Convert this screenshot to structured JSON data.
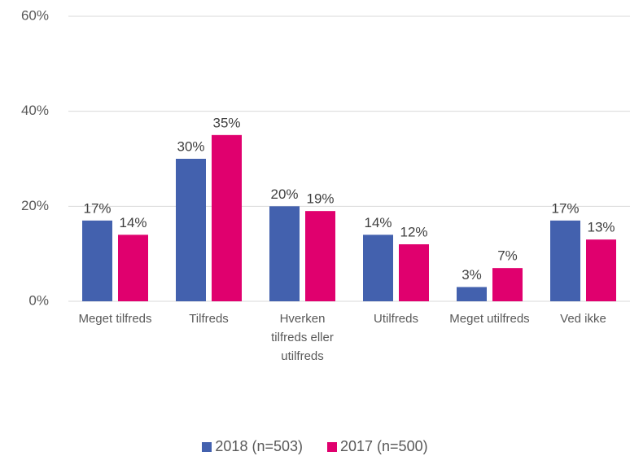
{
  "chart_data": {
    "type": "bar",
    "categories": [
      "Meget tilfreds",
      "Tilfreds",
      "Hverken tilfreds eller utilfreds",
      "Utilfreds",
      "Meget utilfreds",
      "Ved ikke"
    ],
    "series": [
      {
        "name": "2018 (n=503)",
        "color": "#4361ae",
        "values": [
          17,
          30,
          20,
          14,
          3,
          17
        ],
        "value_labels": [
          "17%",
          "30%",
          "20%",
          "14%",
          "3%",
          "17%"
        ]
      },
      {
        "name": "2017 (n=500)",
        "color": "#e0006e",
        "values": [
          14,
          35,
          19,
          12,
          7,
          13
        ],
        "value_labels": [
          "14%",
          "35%",
          "19%",
          "12%",
          "7%",
          "13%"
        ]
      }
    ],
    "ylim": [
      0,
      60
    ],
    "yticks": [
      {
        "value": 0,
        "label": "0%"
      },
      {
        "value": 20,
        "label": "20%"
      },
      {
        "value": 40,
        "label": "40%"
      },
      {
        "value": 60,
        "label": "60%"
      }
    ],
    "grid": true,
    "legend": "bottom"
  }
}
